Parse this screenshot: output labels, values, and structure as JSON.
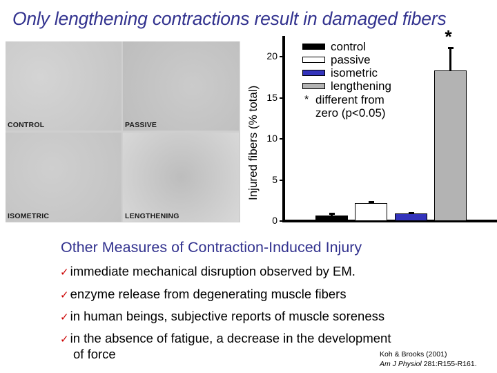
{
  "slide": {
    "title": "Only lengthening contractions result in damaged fibers",
    "micrographs": [
      {
        "label": "CONTROL"
      },
      {
        "label": "PASSIVE"
      },
      {
        "label": "ISOMETRIC"
      },
      {
        "label": "LENGTHENING"
      }
    ],
    "subtitle": "Other Measures of Contraction-Induced Injury",
    "bullet_icon": "checkmark-icon",
    "bullet_mark": "✓",
    "bullets": [
      "immediate mechanical disruption observed by EM.",
      "enzyme release from degenerating muscle fibers",
      "in human beings, subjective reports of muscle soreness",
      "in the absence of fatigue, a decrease in the development"
    ],
    "bullet_continuation": "of force",
    "citation": {
      "authors": "Koh & Brooks (2001)",
      "journal": "Am J Physiol",
      "ref": " 281:R155-R161."
    },
    "colors": {
      "title": "#33338f",
      "check": "#cc0000",
      "control": "#000000",
      "passive": "#ffffff",
      "isometric": "#3333bb",
      "lengthening": "#b3b3b3"
    }
  },
  "chart_data": {
    "type": "bar",
    "title": "Only lengthening contractions result in damaged fibers",
    "xlabel": "",
    "ylabel": "Injured fibers (% total)",
    "ylim": [
      0,
      22
    ],
    "yticks": [
      0,
      5,
      10,
      15,
      20
    ],
    "grid": false,
    "legend_position": "upper left (inside)",
    "categories": [
      "control",
      "passive",
      "isometric",
      "lengthening"
    ],
    "values": [
      0.7,
      2.2,
      0.9,
      18.3
    ],
    "error_upper": [
      0.3,
      0.2,
      0.2,
      2.9
    ],
    "colors": [
      "#000000",
      "#ffffff",
      "#3333bb",
      "#b3b3b3"
    ],
    "significance": [
      false,
      false,
      false,
      true
    ],
    "annotations": [
      "* different from zero (p<0.05)"
    ],
    "legend": [
      "control",
      "passive",
      "isometric",
      "lengthening"
    ],
    "tick_labels": [
      "0",
      "5",
      "10",
      "15",
      "20"
    ],
    "significance_marker": "*",
    "note_marker": "*",
    "note_text": "different from zero (p<0.05)"
  }
}
